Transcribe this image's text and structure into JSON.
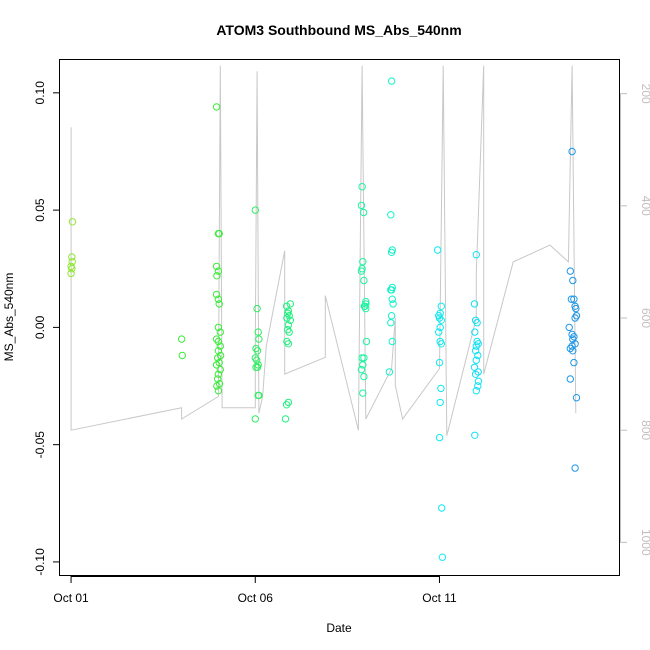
{
  "chart_data": {
    "type": "scatter",
    "title": "ATOM3 Southbound MS_Abs_540nm",
    "xlabel": "Date",
    "ylabel": "MS_Abs_540nm",
    "x_unit": "days after Oct 01 (same year)",
    "xlim": [
      -0.3,
      14.9
    ],
    "ylim": [
      -0.106,
      0.114
    ],
    "y2lim": [
      1060,
      140
    ],
    "x_ticks": [
      {
        "value": 0,
        "label": "Oct 01"
      },
      {
        "value": 5,
        "label": "Oct 06"
      },
      {
        "value": 10,
        "label": "Oct 11"
      }
    ],
    "y_ticks": [
      {
        "value": -0.1,
        "label": "-0.10"
      },
      {
        "value": -0.05,
        "label": "-0.05"
      },
      {
        "value": 0.0,
        "label": "0.00"
      },
      {
        "value": 0.05,
        "label": "0.05"
      },
      {
        "value": 0.1,
        "label": "0.10"
      }
    ],
    "y2_ticks": [
      {
        "value": 200,
        "label": "200"
      },
      {
        "value": 400,
        "label": "400"
      },
      {
        "value": 600,
        "label": "600"
      },
      {
        "value": 800,
        "label": "800"
      },
      {
        "value": 1000,
        "label": "1000"
      }
    ],
    "grid": false,
    "colors": {
      "background": "#ffffff",
      "frame": "#000000",
      "pressure_line": "#c8c8c8",
      "right_axis": "#bfbfbf"
    },
    "pressure_line": [
      [
        0.0,
        260
      ],
      [
        0.0,
        340
      ],
      [
        0.0,
        800
      ],
      [
        3.0,
        760
      ],
      [
        3.0,
        780
      ],
      [
        4.0,
        740
      ],
      [
        4.05,
        150
      ],
      [
        4.1,
        760
      ],
      [
        5.0,
        760
      ],
      [
        5.0,
        650
      ],
      [
        5.05,
        160
      ],
      [
        5.1,
        770
      ],
      [
        5.2,
        740
      ],
      [
        5.3,
        650
      ],
      [
        5.8,
        480
      ],
      [
        5.8,
        700
      ],
      [
        6.9,
        670
      ],
      [
        6.9,
        560
      ],
      [
        7.8,
        800
      ],
      [
        7.9,
        150
      ],
      [
        8.0,
        780
      ],
      [
        8.7,
        690
      ],
      [
        8.8,
        600
      ],
      [
        8.8,
        720
      ],
      [
        9.0,
        780
      ],
      [
        10.0,
        690
      ],
      [
        10.1,
        150
      ],
      [
        10.2,
        810
      ],
      [
        11.0,
        600
      ],
      [
        11.0,
        520
      ],
      [
        11.2,
        150
      ],
      [
        11.2,
        700
      ],
      [
        12.0,
        500
      ],
      [
        13.0,
        470
      ],
      [
        13.5,
        500
      ],
      [
        13.6,
        150
      ],
      [
        13.7,
        770
      ]
    ],
    "series": [
      {
        "color": "#91e632",
        "points": [
          [
            0.0,
            0.023
          ],
          [
            0.02,
            0.025
          ],
          [
            0.0,
            0.026
          ],
          [
            0.03,
            0.028
          ],
          [
            0.02,
            0.03
          ],
          [
            0.04,
            0.045
          ]
        ]
      },
      {
        "color": "#3cec3c",
        "points": [
          [
            3.0,
            -0.005
          ],
          [
            3.02,
            -0.012
          ],
          [
            3.95,
            0.094
          ],
          [
            4.0,
            0.04
          ],
          [
            4.02,
            0.04
          ],
          [
            3.95,
            0.026
          ],
          [
            4.0,
            0.024
          ],
          [
            3.96,
            0.022
          ],
          [
            3.95,
            0.014
          ],
          [
            4.0,
            0.012
          ],
          [
            4.02,
            0.01
          ],
          [
            4.0,
            0.0
          ],
          [
            4.05,
            -0.002
          ],
          [
            4.0,
            -0.006
          ],
          [
            3.95,
            -0.005
          ],
          [
            4.05,
            -0.008
          ],
          [
            4.0,
            -0.01
          ],
          [
            3.98,
            -0.013
          ],
          [
            4.06,
            -0.012
          ],
          [
            4.02,
            -0.015
          ],
          [
            3.95,
            -0.016
          ],
          [
            4.05,
            -0.018
          ],
          [
            4.0,
            -0.02
          ],
          [
            3.98,
            -0.022
          ],
          [
            4.03,
            -0.024
          ],
          [
            3.96,
            -0.025
          ],
          [
            4.0,
            -0.027
          ]
        ]
      },
      {
        "color": "#30ee62",
        "points": [
          [
            5.0,
            0.05
          ],
          [
            5.05,
            0.008
          ],
          [
            5.08,
            -0.002
          ],
          [
            5.1,
            -0.005
          ],
          [
            5.02,
            -0.009
          ],
          [
            5.06,
            -0.01
          ],
          [
            5.0,
            -0.013
          ],
          [
            5.04,
            -0.014
          ],
          [
            5.08,
            -0.016
          ],
          [
            5.02,
            -0.017
          ],
          [
            5.06,
            -0.017
          ],
          [
            5.1,
            -0.029
          ],
          [
            5.08,
            -0.029
          ],
          [
            5.0,
            -0.039
          ]
        ]
      },
      {
        "color": "#22f080",
        "points": [
          [
            5.85,
            0.009
          ],
          [
            5.95,
            0.01
          ],
          [
            5.9,
            0.007
          ],
          [
            5.88,
            0.006
          ],
          [
            5.92,
            0.005
          ],
          [
            5.86,
            0.004
          ],
          [
            5.95,
            0.003
          ],
          [
            5.9,
            0.001
          ],
          [
            5.88,
            -0.001
          ],
          [
            5.92,
            -0.002
          ],
          [
            5.86,
            -0.006
          ],
          [
            5.9,
            -0.007
          ],
          [
            5.85,
            -0.033
          ],
          [
            5.9,
            -0.032
          ],
          [
            5.82,
            -0.039
          ]
        ]
      },
      {
        "color": "#1ef4a0",
        "points": [
          [
            7.9,
            0.06
          ],
          [
            7.88,
            0.052
          ],
          [
            7.94,
            0.049
          ],
          [
            7.92,
            0.028
          ],
          [
            7.9,
            0.025
          ],
          [
            7.88,
            0.024
          ],
          [
            7.95,
            0.02
          ],
          [
            8.0,
            0.011
          ],
          [
            8.0,
            0.01
          ],
          [
            7.98,
            0.009
          ],
          [
            7.96,
            0.009
          ],
          [
            8.0,
            0.008
          ],
          [
            8.02,
            -0.006
          ],
          [
            7.9,
            -0.013
          ],
          [
            7.95,
            -0.013
          ],
          [
            7.92,
            -0.016
          ],
          [
            7.88,
            -0.018
          ],
          [
            7.95,
            -0.021
          ],
          [
            7.92,
            -0.028
          ]
        ]
      },
      {
        "color": "#14f2c8",
        "points": [
          [
            8.7,
            0.105
          ],
          [
            8.68,
            0.048
          ],
          [
            8.72,
            0.033
          ],
          [
            8.7,
            0.032
          ],
          [
            8.72,
            0.017
          ],
          [
            8.68,
            0.016
          ],
          [
            8.7,
            0.016
          ],
          [
            8.72,
            0.012
          ],
          [
            8.74,
            0.01
          ],
          [
            8.7,
            0.005
          ],
          [
            8.68,
            0.002
          ],
          [
            8.72,
            -0.006
          ],
          [
            8.64,
            -0.019
          ]
        ]
      },
      {
        "color": "#10eaf0",
        "points": [
          [
            9.95,
            0.033
          ],
          [
            10.05,
            0.009
          ],
          [
            10.02,
            0.006
          ],
          [
            9.98,
            0.005
          ],
          [
            10.0,
            0.004
          ],
          [
            10.05,
            0.003
          ],
          [
            10.02,
            0.0
          ],
          [
            9.98,
            -0.002
          ],
          [
            10.02,
            -0.006
          ],
          [
            10.05,
            -0.007
          ],
          [
            10.0,
            -0.015
          ],
          [
            10.04,
            -0.026
          ],
          [
            10.02,
            -0.032
          ],
          [
            10.0,
            -0.047
          ],
          [
            10.06,
            -0.077
          ],
          [
            10.08,
            -0.098
          ]
        ]
      },
      {
        "color": "#12e0f6",
        "points": [
          [
            11.0,
            0.031
          ],
          [
            10.95,
            0.01
          ],
          [
            10.98,
            0.003
          ],
          [
            11.02,
            0.002
          ],
          [
            10.96,
            -0.002
          ],
          [
            11.02,
            -0.006
          ],
          [
            11.05,
            -0.007
          ],
          [
            11.0,
            -0.008
          ],
          [
            10.98,
            -0.01
          ],
          [
            11.04,
            -0.012
          ],
          [
            11.0,
            -0.014
          ],
          [
            10.95,
            -0.017
          ],
          [
            11.05,
            -0.019
          ],
          [
            10.98,
            -0.02
          ],
          [
            11.06,
            -0.023
          ],
          [
            11.04,
            -0.025
          ],
          [
            11.0,
            -0.027
          ],
          [
            10.96,
            -0.046
          ]
        ]
      },
      {
        "color": "#1e96e6",
        "points": [
          [
            13.6,
            0.075
          ],
          [
            13.55,
            0.024
          ],
          [
            13.62,
            0.02
          ],
          [
            13.58,
            0.012
          ],
          [
            13.65,
            0.012
          ],
          [
            13.68,
            0.009
          ],
          [
            13.7,
            0.008
          ],
          [
            13.72,
            0.005
          ],
          [
            13.68,
            0.004
          ],
          [
            13.52,
            0.0
          ],
          [
            13.6,
            -0.003
          ],
          [
            13.65,
            -0.004
          ],
          [
            13.62,
            -0.005
          ],
          [
            13.68,
            -0.007
          ],
          [
            13.6,
            -0.008
          ],
          [
            13.55,
            -0.009
          ],
          [
            13.62,
            -0.01
          ],
          [
            13.65,
            -0.015
          ],
          [
            13.55,
            -0.022
          ],
          [
            13.72,
            -0.03
          ],
          [
            13.68,
            -0.06
          ]
        ]
      }
    ]
  }
}
